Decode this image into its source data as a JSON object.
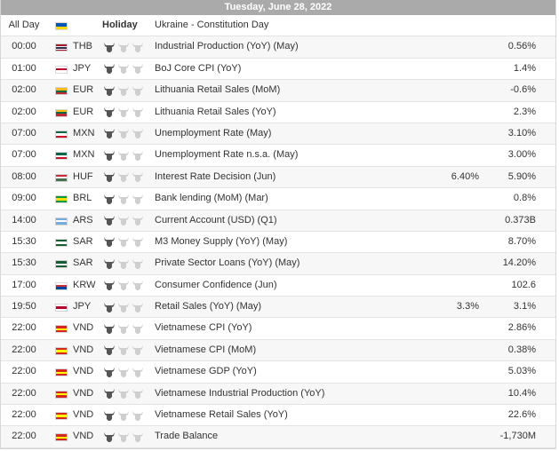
{
  "date_header": "Tuesday, June 28, 2022",
  "holiday_row": {
    "time": "All Day",
    "flag": [
      "#0057b7",
      "#ffd700"
    ],
    "label": "Holiday",
    "event": "Ukraine - Constitution Day"
  },
  "rows": [
    {
      "time": "00:00",
      "flag": [
        "#a51931",
        "#f4f5f8",
        "#2d2a4a",
        "#f4f5f8",
        "#a51931"
      ],
      "currency": "THB",
      "importance": 1,
      "event": "Industrial Production (YoY) (May)",
      "actual": "",
      "forecast": "",
      "previous": "0.56%"
    },
    {
      "time": "01:00",
      "flag": [
        "#ffffff",
        "#bc002d",
        "#ffffff"
      ],
      "currency": "JPY",
      "importance": 1,
      "event": "BoJ Core CPI (YoY)",
      "actual": "",
      "forecast": "",
      "previous": "1.4%"
    },
    {
      "time": "02:00",
      "flag": [
        "#fdb913",
        "#006a44",
        "#c1272d"
      ],
      "currency": "EUR",
      "importance": 1,
      "event": "Lithuania Retail Sales (MoM)",
      "actual": "",
      "forecast": "",
      "previous": "-0.6%"
    },
    {
      "time": "02:00",
      "flag": [
        "#fdb913",
        "#006a44",
        "#c1272d"
      ],
      "currency": "EUR",
      "importance": 1,
      "event": "Lithuania Retail Sales (YoY)",
      "actual": "",
      "forecast": "",
      "previous": "2.3%"
    },
    {
      "time": "07:00",
      "flag": [
        "#006847",
        "#ffffff",
        "#ce1126"
      ],
      "currency": "MXN",
      "importance": 1,
      "event": "Unemployment Rate (May)",
      "actual": "",
      "forecast": "",
      "previous": "3.10%"
    },
    {
      "time": "07:00",
      "flag": [
        "#006847",
        "#ffffff",
        "#ce1126"
      ],
      "currency": "MXN",
      "importance": 1,
      "event": "Unemployment Rate n.s.a. (May)",
      "actual": "",
      "forecast": "",
      "previous": "3.00%"
    },
    {
      "time": "08:00",
      "flag": [
        "#ce2939",
        "#ffffff",
        "#477050"
      ],
      "currency": "HUF",
      "importance": 1,
      "event": "Interest Rate Decision (Jun)",
      "actual": "",
      "forecast": "6.40%",
      "previous": "5.90%"
    },
    {
      "time": "09:00",
      "flag": [
        "#009c3b",
        "#ffdf00",
        "#009c3b"
      ],
      "currency": "BRL",
      "importance": 1,
      "event": "Bank lending (MoM) (Mar)",
      "actual": "",
      "forecast": "",
      "previous": "0.8%"
    },
    {
      "time": "14:00",
      "flag": [
        "#74acdf",
        "#ffffff",
        "#74acdf"
      ],
      "currency": "ARS",
      "importance": 1,
      "event": "Current Account (USD) (Q1)",
      "actual": "",
      "forecast": "",
      "previous": "0.373B"
    },
    {
      "time": "15:30",
      "flag": [
        "#165d31",
        "#ffffff",
        "#165d31"
      ],
      "currency": "SAR",
      "importance": 1,
      "event": "M3 Money Supply (YoY) (May)",
      "actual": "",
      "forecast": "",
      "previous": "8.70%"
    },
    {
      "time": "15:30",
      "flag": [
        "#165d31",
        "#ffffff",
        "#165d31"
      ],
      "currency": "SAR",
      "importance": 1,
      "event": "Private Sector Loans (YoY) (May)",
      "actual": "",
      "forecast": "",
      "previous": "14.20%"
    },
    {
      "time": "17:00",
      "flag": [
        "#ffffff",
        "#cd2e3a",
        "#0047a0"
      ],
      "currency": "KRW",
      "importance": 1,
      "event": "Consumer Confidence (Jun)",
      "actual": "",
      "forecast": "",
      "previous": "102.6"
    },
    {
      "time": "19:50",
      "flag": [
        "#ffffff",
        "#bc002d",
        "#ffffff"
      ],
      "currency": "JPY",
      "importance": 1,
      "event": "Retail Sales (YoY) (May)",
      "actual": "",
      "forecast": "3.3%",
      "previous": "3.1%"
    },
    {
      "time": "22:00",
      "flag": [
        "#da251d",
        "#ffff00",
        "#da251d"
      ],
      "currency": "VND",
      "importance": 1,
      "event": "Vietnamese CPI (YoY)",
      "actual": "",
      "forecast": "",
      "previous": "2.86%"
    },
    {
      "time": "22:00",
      "flag": [
        "#da251d",
        "#ffff00",
        "#da251d"
      ],
      "currency": "VND",
      "importance": 1,
      "event": "Vietnamese CPI (MoM)",
      "actual": "",
      "forecast": "",
      "previous": "0.38%"
    },
    {
      "time": "22:00",
      "flag": [
        "#da251d",
        "#ffff00",
        "#da251d"
      ],
      "currency": "VND",
      "importance": 1,
      "event": "Vietnamese GDP (YoY)",
      "actual": "",
      "forecast": "",
      "previous": "5.03%"
    },
    {
      "time": "22:00",
      "flag": [
        "#da251d",
        "#ffff00",
        "#da251d"
      ],
      "currency": "VND",
      "importance": 1,
      "event": "Vietnamese Industrial Production (YoY)",
      "actual": "",
      "forecast": "",
      "previous": "10.4%"
    },
    {
      "time": "22:00",
      "flag": [
        "#da251d",
        "#ffff00",
        "#da251d"
      ],
      "currency": "VND",
      "importance": 1,
      "event": "Vietnamese Retail Sales (YoY)",
      "actual": "",
      "forecast": "",
      "previous": "22.6%"
    },
    {
      "time": "22:00",
      "flag": [
        "#da251d",
        "#ffff00",
        "#da251d"
      ],
      "currency": "VND",
      "importance": 1,
      "event": "Trade Balance",
      "actual": "",
      "forecast": "",
      "previous": "-1,730M"
    }
  ],
  "importance_icon": "bull-icon",
  "importance_colors": {
    "active": "#555555",
    "inactive": "#cfcfcf"
  }
}
